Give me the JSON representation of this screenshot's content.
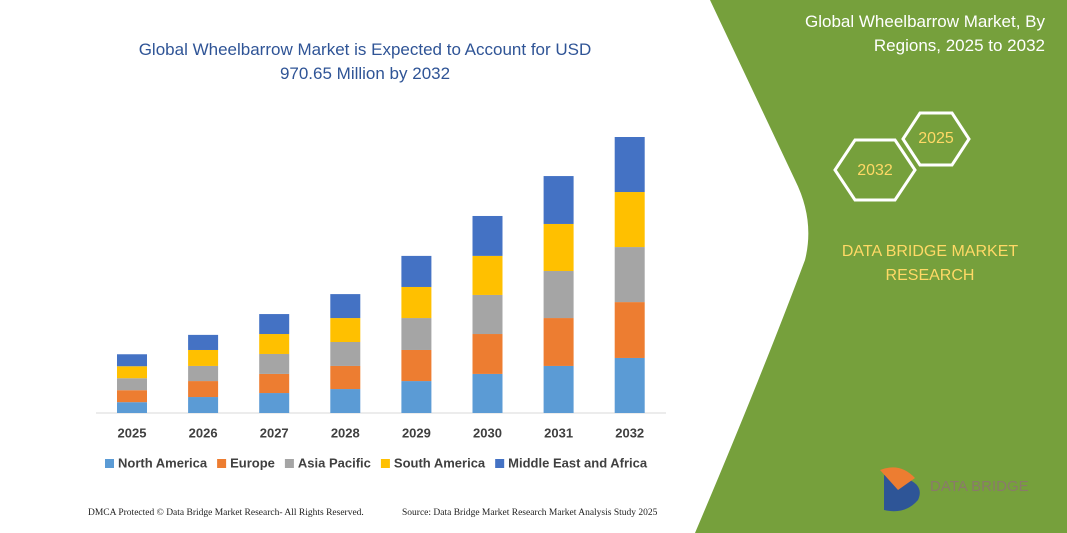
{
  "chart_data": {
    "type": "stacked_bar",
    "title": "Global Wheelbarrow Market is Expected to Account for USD 970.65 Million by 2032",
    "categories": [
      "2025",
      "2026",
      "2027",
      "2028",
      "2029",
      "2030",
      "2031",
      "2032"
    ],
    "series": [
      {
        "name": "North America",
        "color": "#5b9bd5",
        "values": [
          38,
          56,
          70,
          84,
          112,
          137,
          165,
          193
        ]
      },
      {
        "name": "Europe",
        "color": "#ed7d31",
        "values": [
          42,
          56,
          67,
          81,
          109,
          140,
          168,
          196
        ]
      },
      {
        "name": "Asia Pacific",
        "color": "#a5a5a5",
        "values": [
          42,
          53,
          70,
          84,
          112,
          137,
          165,
          193
        ]
      },
      {
        "name": "South America",
        "color": "#ffc000",
        "values": [
          42,
          56,
          70,
          84,
          109,
          137,
          165,
          193
        ]
      },
      {
        "name": "Middle East and Africa",
        "color": "#4472c4",
        "values": [
          42,
          53,
          70,
          84,
          109,
          140,
          168,
          193
        ]
      }
    ]
  },
  "sidebar": {
    "title": "Global Wheelbarrow Market, By Regions, 2025 to 2032",
    "hex_small": "2025",
    "hex_large": "2032",
    "brand": "DATA BRIDGE MARKET RESEARCH"
  },
  "footer": {
    "left": "DMCA Protected © Data Bridge Market Research- All Rights Reserved.",
    "right": "Source: Data Bridge Market Research  Market Analysis Study 2025"
  },
  "logo": {
    "text": "DATA BRIDGE"
  }
}
